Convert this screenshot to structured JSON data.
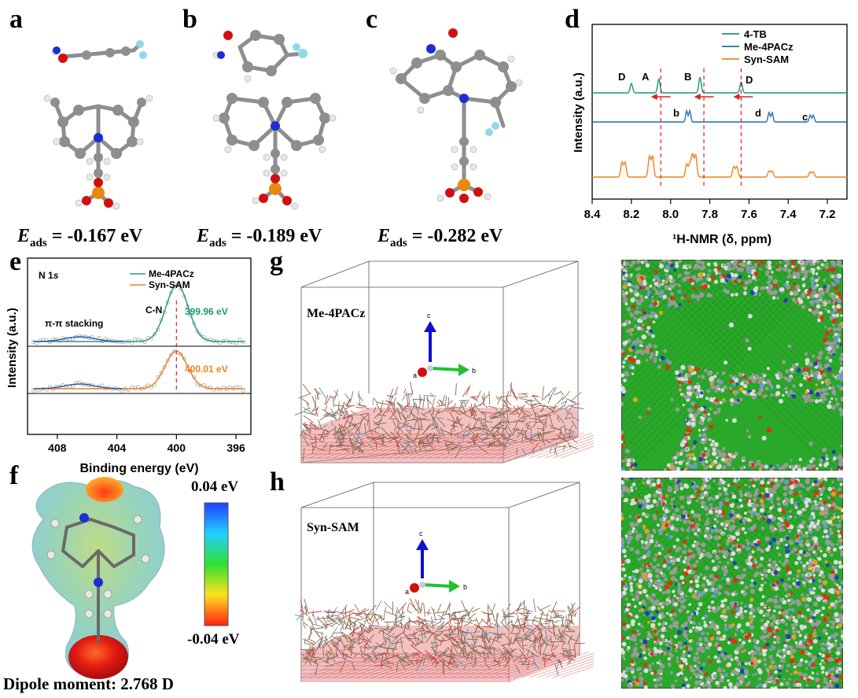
{
  "panels": {
    "a": "a",
    "b": "b",
    "c": "c",
    "d": "d",
    "e": "e",
    "f": "f",
    "g": "g",
    "h": "h"
  },
  "adsorption": [
    {
      "prefix": "E",
      "sub": "ads",
      "value": " = -0.167 eV"
    },
    {
      "prefix": "E",
      "sub": "ads",
      "value": " = -0.189 eV"
    },
    {
      "prefix": "E",
      "sub": "ads",
      "value": " = -0.282 eV"
    }
  ],
  "atom_colors": {
    "carbon": "#8e8e8e",
    "hydrogen": "#e8e8e8",
    "nitrogen": "#1d2fd0",
    "oxygen": "#d01010",
    "phosphorus": "#e88a10",
    "fluorine": "#8fd8e8"
  },
  "nmr": {
    "xlabel": "¹H-NMR (δ, ppm)",
    "ylabel": "Intensity (a.u.)",
    "ticks": [
      "8.4",
      "8.2",
      "8.0",
      "7.8",
      "7.6",
      "7.4",
      "7.2"
    ],
    "legend": [
      {
        "name": "4-TB",
        "color": "#1a9a6c"
      },
      {
        "name": "Me-4PACz",
        "color": "#1f6fb0"
      },
      {
        "name": "Syn-SAM",
        "color": "#f0821e"
      }
    ],
    "peak_labels_top": [
      "D",
      "A",
      "B",
      "D"
    ],
    "peak_labels_mid": [
      "b",
      "d",
      "c"
    ]
  },
  "chart_data": [
    {
      "type": "line",
      "title": "",
      "xlabel": "¹H-NMR (δ, ppm)",
      "ylabel": "Intensity (a.u.)",
      "xlim": [
        8.4,
        7.1
      ],
      "x_reversed": true,
      "series": [
        {
          "name": "4-TB",
          "peaks_ppm": [
            8.2,
            8.06,
            7.85,
            7.64
          ]
        },
        {
          "name": "Me-4PACz",
          "peaks_ppm": [
            7.91,
            7.49,
            7.28
          ]
        },
        {
          "name": "Syn-SAM",
          "peaks_ppm": [
            8.24,
            8.1,
            7.91,
            7.88,
            7.67,
            7.49,
            7.28
          ]
        }
      ],
      "reference_lines_ppm": [
        8.05,
        7.83,
        7.64
      ]
    },
    {
      "type": "line",
      "title": "",
      "xlabel": "Binding energy (eV)",
      "ylabel": "Intensity (a.u.)",
      "xlim": [
        410,
        395
      ],
      "x_reversed": true,
      "series": [
        {
          "name": "Me-4PACz",
          "peak_eV": 399.96
        },
        {
          "name": "Syn-SAM",
          "peak_eV": 400.01
        }
      ]
    }
  ],
  "xps": {
    "xlabel": "Binding energy (eV)",
    "ylabel": "Intensity (a.u.)",
    "core": "N 1",
    "core_sub": "s",
    "ticks": [
      "408",
      "404",
      "400",
      "396"
    ],
    "legend": [
      {
        "name": "Me-4PACz",
        "color": "#2a9a8a"
      },
      {
        "name": "Syn-SAM",
        "color": "#f0821e"
      }
    ],
    "pi_label": "π-π stacking",
    "cn_label": "C-N",
    "peak1": "399.96 eV",
    "peak2": "400.01 eV"
  },
  "esp": {
    "scale_max": "0.04 eV",
    "scale_min": "-0.04 eV",
    "dipole": "Dipole moment: 2.768 D"
  },
  "md": {
    "g_label": "Me-4PACz",
    "h_label": "Syn-SAM",
    "axes": {
      "c": "c",
      "a": "a",
      "b": "b"
    }
  }
}
